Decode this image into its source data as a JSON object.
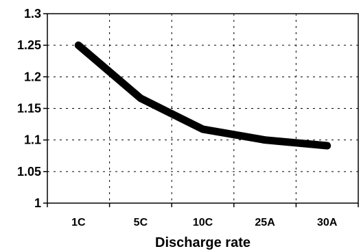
{
  "chart_data": {
    "type": "line",
    "categories": [
      "1C",
      "5C",
      "10C",
      "25A",
      "30A"
    ],
    "series": [
      {
        "values": [
          1.25,
          1.166,
          1.117,
          1.1,
          1.091
        ]
      }
    ],
    "xlabel": "Discharge rate",
    "ylabel": "",
    "ylim": [
      1,
      1.3
    ],
    "yticks": [
      "1",
      "1.05",
      "1.1",
      "1.15",
      "1.2",
      "1.25",
      "1.3"
    ],
    "grid": true,
    "line_color": "#000000"
  }
}
